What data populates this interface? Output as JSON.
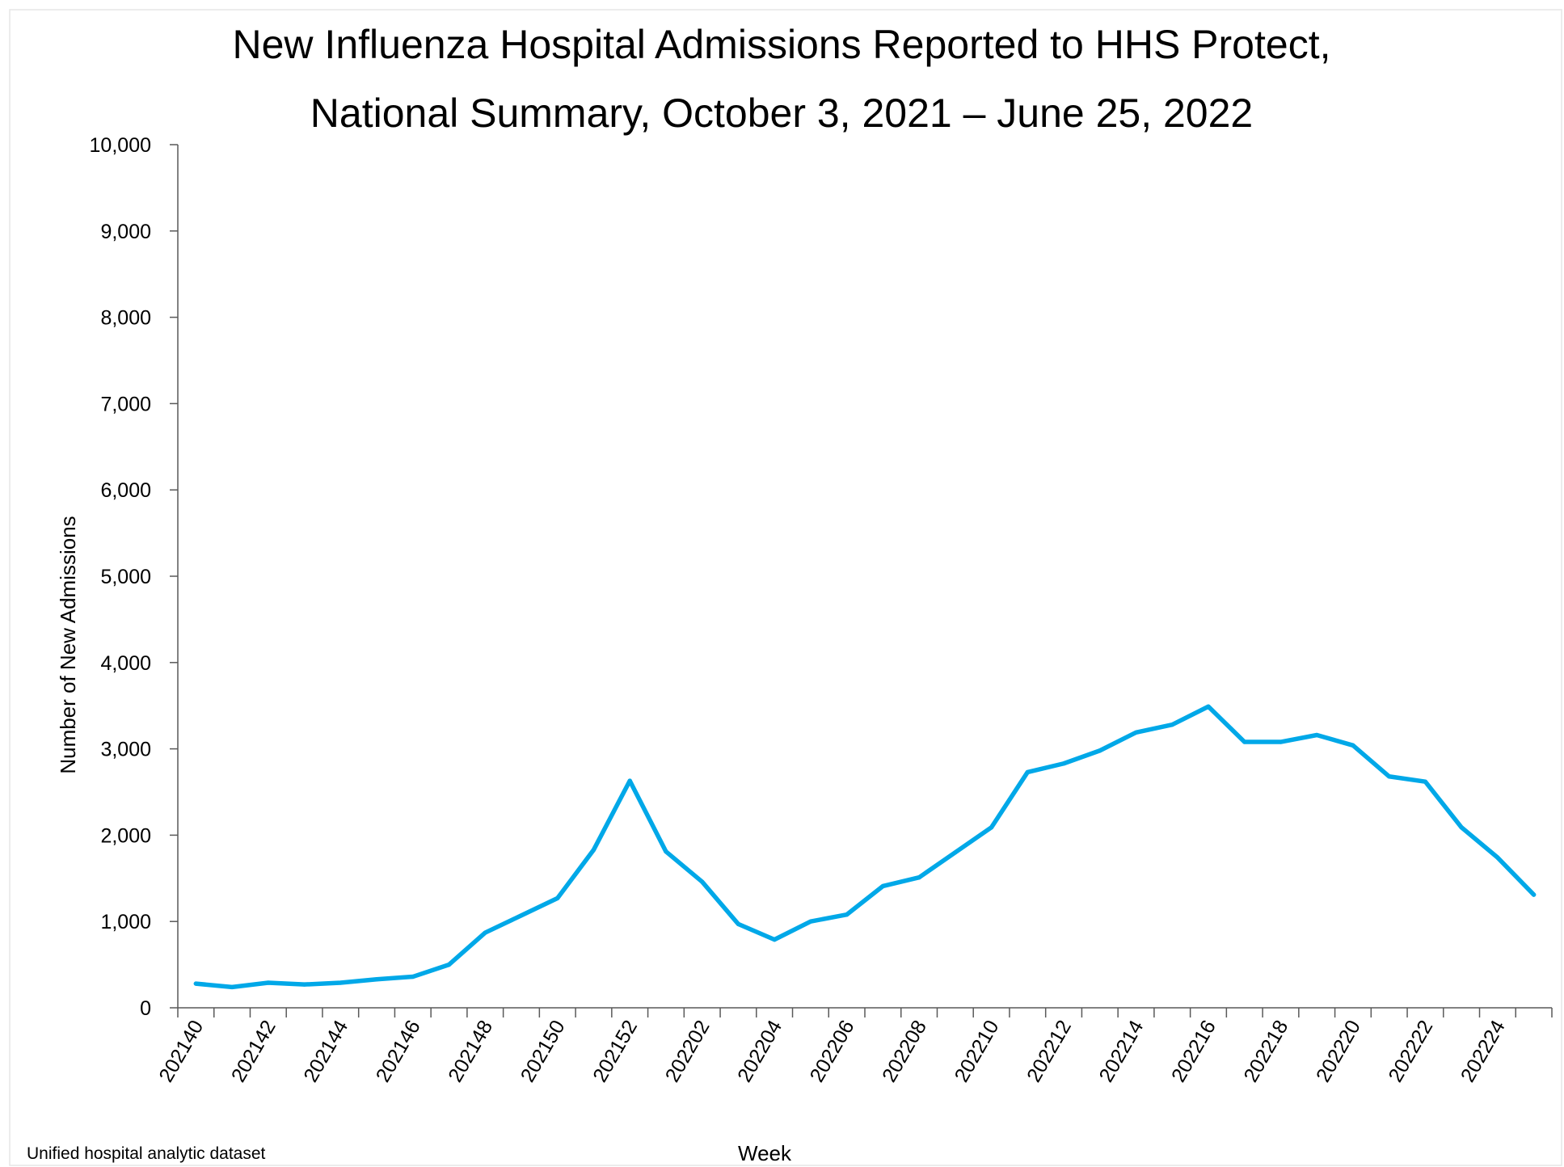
{
  "chart_data": {
    "type": "line",
    "title": "New Influenza Hospital Admissions Reported to HHS Protect,",
    "subtitle": "National Summary, October 3, 2021 – June 25, 2022",
    "xlabel": "Week",
    "ylabel": "Number of New Admissions",
    "source": "Unified hospital analytic dataset",
    "ylim": [
      0,
      10000
    ],
    "y_ticks": [
      0,
      1000,
      2000,
      3000,
      4000,
      5000,
      6000,
      7000,
      8000,
      9000,
      10000
    ],
    "y_tick_labels": [
      "0",
      "1,000",
      "2,000",
      "3,000",
      "4,000",
      "5,000",
      "6,000",
      "7,000",
      "8,000",
      "9,000",
      "10,000"
    ],
    "x_tick_labels": [
      "202140",
      "202142",
      "202144",
      "202146",
      "202148",
      "202150",
      "202152",
      "202202",
      "202204",
      "202206",
      "202208",
      "202210",
      "202212",
      "202214",
      "202216",
      "202218",
      "202220",
      "202222",
      "202224"
    ],
    "weeks": [
      "202140",
      "202141",
      "202142",
      "202143",
      "202144",
      "202145",
      "202146",
      "202147",
      "202148",
      "202149",
      "202150",
      "202151",
      "202152",
      "202201",
      "202202",
      "202203",
      "202204",
      "202205",
      "202206",
      "202207",
      "202208",
      "202209",
      "202210",
      "202211",
      "202212",
      "202213",
      "202214",
      "202215",
      "202216",
      "202217",
      "202218",
      "202219",
      "202220",
      "202221",
      "202222",
      "202223",
      "202224",
      "202225"
    ],
    "series": [
      {
        "values": [
          280,
          240,
          290,
          270,
          290,
          330,
          360,
          500,
          870,
          1070,
          1270,
          1830,
          2630,
          1810,
          1460,
          970,
          790,
          1000,
          1080,
          1410,
          1510,
          1800,
          2090,
          2730,
          2830,
          2980,
          3190,
          3280,
          3490,
          3080,
          3080,
          3160,
          3040,
          2680,
          2620,
          2090,
          1740,
          1310
        ]
      }
    ],
    "grid": false,
    "legend": "none",
    "line_color": "#00a8e8"
  }
}
